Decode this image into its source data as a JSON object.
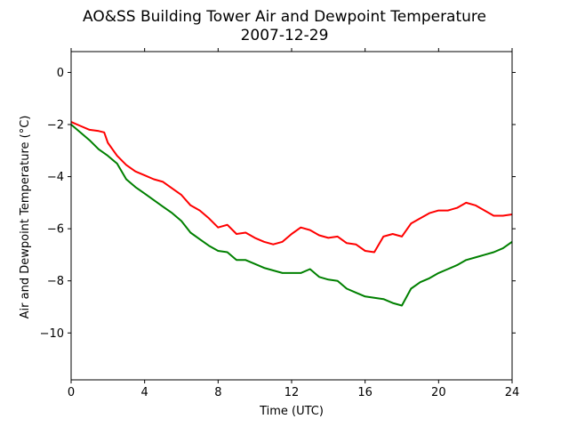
{
  "chart_data": {
    "type": "line",
    "title": "AO&SS Building Tower Air and Dewpoint Temperature",
    "subtitle": "2007-12-29",
    "xlabel": "Time (UTC)",
    "ylabel": "Air and Dewpoint Temperature (°C)",
    "xlim": [
      0,
      24
    ],
    "ylim": [
      -11.8,
      0.8
    ],
    "xticks": [
      0,
      4,
      8,
      12,
      16,
      20,
      24
    ],
    "yticks": [
      0,
      -2,
      -4,
      -6,
      -8,
      -10
    ],
    "xtick_labels": [
      "0",
      "4",
      "8",
      "12",
      "16",
      "20",
      "24"
    ],
    "ytick_labels": [
      "0",
      "−2",
      "−4",
      "−6",
      "−8",
      "−10"
    ],
    "grid": false,
    "series": [
      {
        "color": "#ff0000",
        "x": [
          0,
          0.5,
          1,
          1.5,
          1.8,
          2,
          2.5,
          3,
          3.5,
          4,
          4.5,
          5,
          5.5,
          6,
          6.5,
          7,
          7.5,
          8,
          8.5,
          9,
          9.5,
          10,
          10.5,
          11,
          11.5,
          12,
          12.5,
          13,
          13.5,
          14,
          14.5,
          15,
          15.5,
          16,
          16.5,
          17,
          17.5,
          18,
          18.5,
          19,
          19.5,
          20,
          20.5,
          21,
          21.5,
          22,
          22.5,
          23,
          23.5,
          24
        ],
        "values": [
          -1.9,
          -2.05,
          -2.2,
          -2.25,
          -2.3,
          -2.7,
          -3.2,
          -3.55,
          -3.8,
          -3.95,
          -4.1,
          -4.2,
          -4.45,
          -4.7,
          -5.1,
          -5.3,
          -5.6,
          -5.95,
          -5.85,
          -6.2,
          -6.15,
          -6.35,
          -6.5,
          -6.6,
          -6.5,
          -6.2,
          -5.95,
          -6.05,
          -6.25,
          -6.35,
          -6.3,
          -6.55,
          -6.6,
          -6.85,
          -6.9,
          -6.3,
          -6.2,
          -6.3,
          -5.8,
          -5.6,
          -5.4,
          -5.3,
          -5.3,
          -5.2,
          -5.0,
          -5.1,
          -5.3,
          -5.5,
          -5.5,
          -5.45
        ]
      },
      {
        "color": "#008000",
        "x": [
          0,
          0.5,
          1,
          1.5,
          2,
          2.5,
          3,
          3.5,
          4,
          4.5,
          5,
          5.5,
          6,
          6.5,
          7,
          7.5,
          8,
          8.5,
          9,
          9.5,
          10,
          10.5,
          11,
          11.5,
          12,
          12.5,
          13,
          13.5,
          14,
          14.5,
          15,
          15.5,
          16,
          16.5,
          17,
          17.5,
          18,
          18.5,
          19,
          19.5,
          20,
          20.5,
          21,
          21.5,
          22,
          22.5,
          23,
          23.5,
          24
        ],
        "values": [
          -2.0,
          -2.3,
          -2.6,
          -2.95,
          -3.2,
          -3.5,
          -4.1,
          -4.4,
          -4.65,
          -4.9,
          -5.15,
          -5.4,
          -5.7,
          -6.15,
          -6.4,
          -6.65,
          -6.85,
          -6.9,
          -7.2,
          -7.2,
          -7.35,
          -7.5,
          -7.6,
          -7.7,
          -7.7,
          -7.7,
          -7.55,
          -7.85,
          -7.95,
          -8.0,
          -8.3,
          -8.45,
          -8.6,
          -8.65,
          -8.7,
          -8.85,
          -8.95,
          -8.3,
          -8.05,
          -7.9,
          -7.7,
          -7.55,
          -7.4,
          -7.2,
          -7.1,
          -7.0,
          -6.9,
          -6.75,
          -6.5
        ]
      }
    ]
  }
}
